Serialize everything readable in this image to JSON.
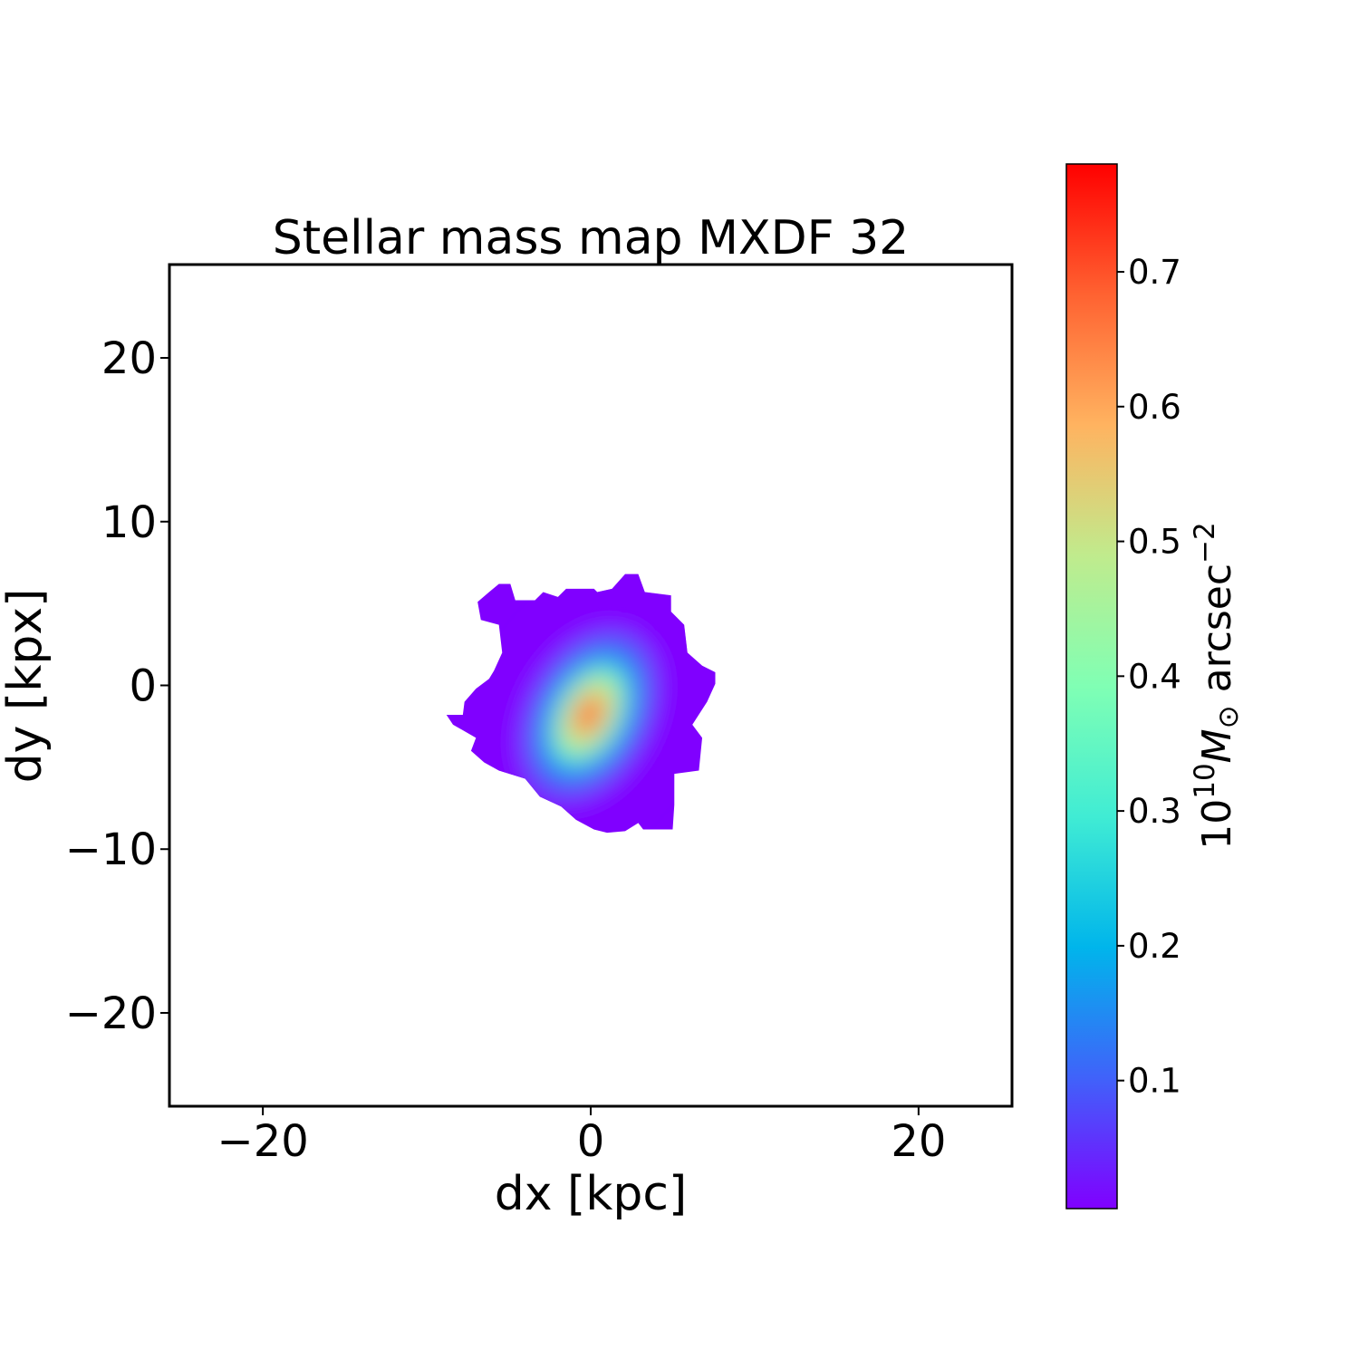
{
  "chart_data": {
    "type": "heatmap",
    "title": "Stellar mass map MXDF 32",
    "xlabel": "dx [kpc]",
    "ylabel": "dy [kpx]",
    "xlim": [
      -25.7,
      25.7
    ],
    "ylim": [
      -25.7,
      25.7
    ],
    "xticks": [
      -20,
      0,
      20
    ],
    "yticks": [
      -20,
      -10,
      0,
      10,
      20
    ],
    "xtick_labels": [
      "−20",
      "0",
      "20"
    ],
    "ytick_labels": [
      "−20",
      "−10",
      "0",
      "10",
      "20"
    ],
    "grid": false,
    "colormap": "rainbow",
    "colormap_stops": [
      "#8000ff",
      "#4062fa",
      "#00b5eb",
      "#40ecd4",
      "#80ffb4",
      "#c0eb8d",
      "#ffb360",
      "#ff6231",
      "#ff0000"
    ],
    "colorbar": {
      "label_base": "10",
      "label_exp": "10",
      "label_unit": "M",
      "label_sub": "⊙",
      "label_rest": " arcsec",
      "label_rest_exp": "−2",
      "range": [
        0.005,
        0.78
      ],
      "ticks": [
        0.1,
        0.2,
        0.3,
        0.4,
        0.5,
        0.6,
        0.7
      ],
      "tick_labels": [
        "0.1",
        "0.2",
        "0.3",
        "0.4",
        "0.5",
        "0.6",
        "0.7"
      ]
    },
    "source": {
      "peak_position": [
        -0.1,
        -1.8
      ],
      "peak_value": 0.78,
      "background_value": 0.01,
      "major_axis_angle_deg": 62,
      "mask_outline": [
        [
          -6.9,
          5.1
        ],
        [
          -6.2,
          5.7
        ],
        [
          -5.6,
          6.2
        ],
        [
          -4.9,
          6.2
        ],
        [
          -4.6,
          5.2
        ],
        [
          -3.4,
          5.2
        ],
        [
          -2.9,
          5.7
        ],
        [
          -2.0,
          5.4
        ],
        [
          -1.5,
          5.9
        ],
        [
          0.2,
          5.9
        ],
        [
          0.4,
          5.7
        ],
        [
          1.3,
          5.9
        ],
        [
          2.1,
          6.8
        ],
        [
          2.9,
          6.8
        ],
        [
          3.3,
          5.7
        ],
        [
          4.9,
          5.5
        ],
        [
          4.9,
          4.5
        ],
        [
          5.7,
          3.7
        ],
        [
          5.9,
          2.0
        ],
        [
          6.8,
          1.2
        ],
        [
          7.6,
          0.8
        ],
        [
          7.6,
          0.1
        ],
        [
          7.1,
          -1.0
        ],
        [
          6.2,
          -2.4
        ],
        [
          6.8,
          -3.2
        ],
        [
          6.6,
          -5.2
        ],
        [
          5.1,
          -5.4
        ],
        [
          5.1,
          -7.3
        ],
        [
          5.0,
          -8.8
        ],
        [
          3.2,
          -8.8
        ],
        [
          2.9,
          -8.4
        ],
        [
          2.1,
          -8.9
        ],
        [
          1.0,
          -9.0
        ],
        [
          0.2,
          -8.8
        ],
        [
          -0.9,
          -8.2
        ],
        [
          -1.8,
          -7.4
        ],
        [
          -3.1,
          -6.8
        ],
        [
          -4.0,
          -5.7
        ],
        [
          -5.6,
          -5.2
        ],
        [
          -6.5,
          -4.7
        ],
        [
          -7.3,
          -4.0
        ],
        [
          -7.0,
          -3.2
        ],
        [
          -8.4,
          -2.4
        ],
        [
          -8.8,
          -1.8
        ],
        [
          -7.8,
          -1.8
        ],
        [
          -7.7,
          -1.0
        ],
        [
          -7.0,
          -0.2
        ],
        [
          -6.2,
          0.4
        ],
        [
          -5.9,
          0.9
        ],
        [
          -5.4,
          2.0
        ],
        [
          -5.6,
          3.7
        ],
        [
          -6.7,
          4.0
        ]
      ]
    }
  }
}
